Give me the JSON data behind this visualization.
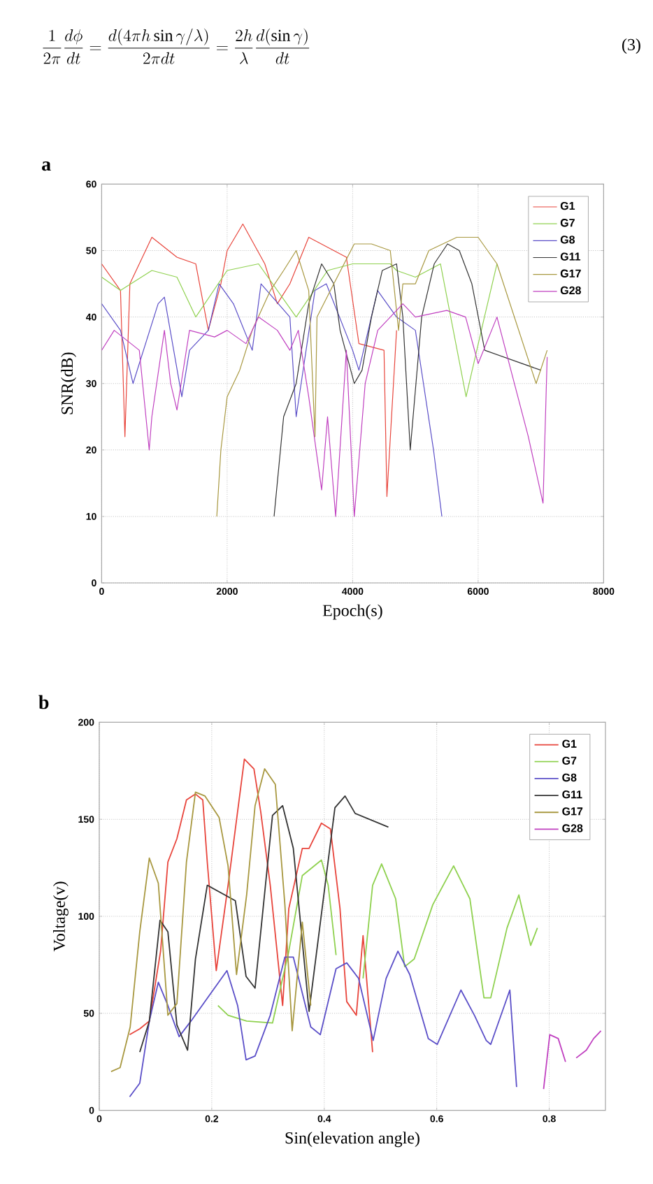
{
  "chart_data": [
    {
      "type": "line",
      "title": "a",
      "xlabel": "Epoch(s)",
      "ylabel": "SNR(dB)",
      "annotations": [
        "\\frac{1}{2\\pi}\\frac{d\\phi}{dt}=\\frac{d(4\\pi h\\sin\\gamma/\\lambda)}{2\\pi dt}=\\frac{2h}{\\lambda}\\frac{d(\\sin\\gamma)}{dt}",
        "(3)"
      ],
      "xlim": [
        0,
        8000
      ],
      "ylim": [
        0,
        60
      ],
      "xticks": [
        0,
        2000,
        4000,
        6000,
        8000
      ],
      "yticks": [
        0,
        10,
        20,
        30,
        40,
        50,
        60
      ],
      "grid": true,
      "legend": "top right",
      "marker": "none",
      "line_style": "solid",
      "series": [
        {
          "name": "G1",
          "color": "#e8453c",
          "x": [
            0,
            300,
            371,
            450,
            800,
            1200,
            1500,
            1700,
            1900,
            2000,
            2250,
            2600,
            2800,
            3000,
            3300,
            3700,
            3900,
            4100,
            4500,
            4546,
            4700
          ],
          "values": [
            48,
            44,
            22,
            45,
            52,
            49,
            48,
            38,
            45,
            50,
            54,
            48,
            42,
            45,
            52,
            50,
            49,
            36,
            35,
            13,
            38
          ]
        },
        {
          "name": "G7",
          "color": "#8fd14f",
          "x": [
            0,
            300,
            800,
            1200,
            1500,
            2000,
            2500,
            3100,
            3600,
            4000,
            4600,
            4700,
            5000,
            5400,
            5808,
            6100,
            6300
          ],
          "values": [
            46,
            44,
            47,
            46,
            40,
            47,
            48,
            40,
            47,
            48,
            48,
            47,
            46,
            48,
            28,
            40,
            48
          ]
        },
        {
          "name": "G8",
          "color": "#5b4fc8",
          "x": [
            0,
            300,
            500,
            900,
            1000,
            1278,
            1400,
            1700,
            1872,
            2100,
            2400,
            2540,
            3000,
            3100,
            3400,
            3580,
            4000,
            4100,
            4397,
            4700,
            5000,
            5289,
            5422
          ],
          "values": [
            42,
            38,
            30,
            42,
            43,
            28,
            35,
            38,
            45,
            42,
            35,
            45,
            40,
            25,
            44,
            45,
            35,
            32,
            44,
            40,
            38,
            20,
            10
          ]
        },
        {
          "name": "G11",
          "color": "#333333",
          "x": [
            2748,
            2900,
            3100,
            3300,
            3506,
            3700,
            3800,
            4026,
            4150,
            4300,
            4472,
            4700,
            4800,
            4918,
            5100,
            5300,
            5512,
            5700,
            5900,
            6105,
            7000
          ],
          "values": [
            10,
            25,
            30,
            42,
            48,
            45,
            38,
            30,
            32,
            40,
            47,
            48,
            40,
            20,
            40,
            48,
            51,
            50,
            45,
            35,
            32
          ]
        },
        {
          "name": "G17",
          "color": "#a89840",
          "x": [
            1835,
            1900,
            2000,
            2200,
            2400,
            2689,
            2900,
            3100,
            3300,
            3400,
            3432,
            3700,
            4026,
            4300,
            4600,
            4732,
            4800,
            5000,
            5214,
            5660,
            6000,
            6300,
            6924,
            7100
          ],
          "values": [
            10,
            20,
            28,
            32,
            38,
            44,
            47,
            50,
            44,
            22,
            40,
            45,
            51,
            51,
            50,
            38,
            45,
            45,
            50,
            52,
            52,
            48,
            30,
            35
          ]
        },
        {
          "name": "G28",
          "color": "#c040c0",
          "x": [
            0,
            200,
            600,
            758,
            800,
            1000,
            1100,
            1200,
            1400,
            1800,
            2000,
            2300,
            2500,
            2800,
            3000,
            3134,
            3300,
            3506,
            3600,
            3729,
            3900,
            4026,
            4200,
            4400,
            4600,
            4800,
            5000,
            5500,
            5800,
            6000,
            6300,
            6800,
            7034,
            7100
          ],
          "values": [
            35,
            38,
            35,
            20,
            25,
            38,
            30,
            26,
            38,
            37,
            38,
            36,
            40,
            38,
            35,
            38,
            28,
            14,
            25,
            10,
            35,
            10,
            30,
            38,
            40,
            42,
            40,
            41,
            40,
            33,
            40,
            22,
            12,
            34
          ]
        }
      ]
    },
    {
      "type": "line",
      "title": "b",
      "xlabel": "Sin(elevation angle)",
      "ylabel": "Voltage(v)",
      "xlim": [
        0,
        0.9
      ],
      "ylim": [
        0,
        200
      ],
      "xticks": [
        0,
        0.2,
        0.4,
        0.6,
        0.8
      ],
      "yticks": [
        0,
        50,
        100,
        150,
        200
      ],
      "grid": true,
      "legend": "top right",
      "marker": "none",
      "line_style": "solid",
      "series": [
        {
          "name": "G1",
          "color": "#e8453c",
          "x": [
            0.054,
            0.072,
            0.089,
            0.109,
            0.122,
            0.138,
            0.155,
            0.171,
            0.184,
            0.192,
            0.208,
            0.229,
            0.258,
            0.275,
            0.287,
            0.304,
            0.326,
            0.337,
            0.361,
            0.373,
            0.395,
            0.411,
            0.428,
            0.44,
            0.457,
            0.469,
            0.486
          ],
          "values": [
            39,
            42,
            46,
            82,
            128,
            140,
            160,
            163,
            160,
            128,
            72,
            116,
            181,
            176,
            154,
            116,
            54,
            104,
            135,
            135,
            148,
            145,
            104,
            56,
            49,
            90,
            30
          ]
        },
        {
          "name": "G7",
          "color": "#8fd14f",
          "x": [
            0.211,
            0.229,
            0.262,
            0.308,
            0.337,
            0.361,
            0.395,
            0.407,
            0.421,
            0.445,
            0.469,
            0.486,
            0.502,
            0.527,
            0.543,
            0.56,
            0.593,
            0.63,
            0.659,
            0.684,
            0.696,
            0.725,
            0.746,
            0.767,
            0.779
          ],
          "values": [
            54,
            49,
            46,
            45,
            82,
            121,
            129,
            116,
            80,
            null,
            68,
            116,
            127,
            109,
            74,
            78,
            106,
            126,
            109,
            58,
            58,
            94,
            111,
            85,
            94
          ]
        },
        {
          "name": "G8",
          "color": "#5b4fc8",
          "x": [
            0.054,
            0.072,
            0.089,
            0.105,
            0.122,
            0.142,
            0.163,
            0.227,
            0.246,
            0.261,
            0.277,
            0.304,
            0.33,
            0.345,
            0.376,
            0.393,
            0.421,
            0.44,
            0.461,
            0.487,
            0.51,
            0.531,
            0.552,
            0.585,
            0.601,
            0.643,
            0.667,
            0.688,
            0.696,
            0.73,
            0.742
          ],
          "values": [
            7,
            14,
            46,
            66,
            54,
            38,
            46,
            72,
            54,
            26,
            28,
            49,
            79,
            79,
            43,
            39,
            73,
            76,
            68,
            36,
            68,
            82,
            70,
            37,
            34,
            62,
            49,
            36,
            34,
            62,
            12
          ]
        },
        {
          "name": "G11",
          "color": "#333333",
          "x": [
            0.072,
            0.089,
            0.108,
            0.122,
            0.138,
            0.157,
            0.171,
            0.192,
            0.242,
            0.261,
            0.277,
            0.308,
            0.326,
            0.345,
            0.373,
            0.419,
            0.437,
            0.455,
            0.514
          ],
          "values": [
            30,
            46,
            98,
            92,
            44,
            31,
            78,
            116,
            108,
            69,
            63,
            152,
            157,
            135,
            51,
            156,
            162,
            153,
            146
          ]
        },
        {
          "name": "G17",
          "color": "#a89840",
          "x": [
            0.021,
            0.037,
            0.055,
            0.072,
            0.089,
            0.105,
            0.122,
            0.138,
            0.155,
            0.171,
            0.188,
            0.213,
            0.229,
            0.244,
            0.262,
            0.277,
            0.294,
            0.313,
            0.33,
            0.343,
            0.361,
            0.376
          ],
          "values": [
            20,
            22,
            43,
            92,
            130,
            117,
            49,
            55,
            128,
            164,
            162,
            151,
            126,
            70,
            111,
            157,
            176,
            168,
            106,
            41,
            97,
            54
          ]
        },
        {
          "name": "G28",
          "color": "#c040c0",
          "x": [
            0.79,
            0.801,
            0.816,
            0.829,
            0.838,
            0.848,
            0.866,
            0.879,
            0.892
          ],
          "values": [
            11,
            39,
            37,
            25,
            null,
            27,
            31,
            37,
            41
          ]
        }
      ]
    }
  ]
}
